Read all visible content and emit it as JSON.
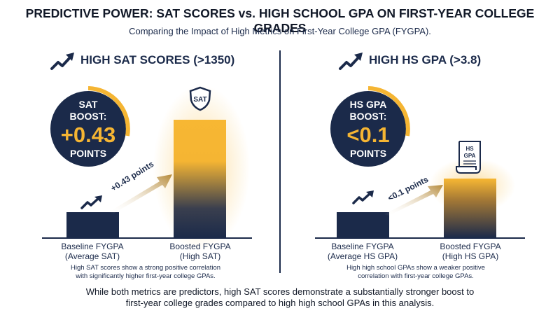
{
  "title": "PREDICTIVE POWER: SAT SCORES vs. HIGH SCHOOL GPA ON FIRST-YEAR COLLEGE GRADES",
  "subtitle": "Comparing the Impact of High Metrics on First-Year College GPA (FYGPA).",
  "panels": [
    {
      "heading": "HIGH SAT SCORES (>1350)",
      "badge_line1": "SAT",
      "badge_line2": "BOOST:",
      "badge_value": "+0.43",
      "badge_unit": "POINTS",
      "arrow_label": "+0.43 points",
      "icon_label": "SAT",
      "baseline_label": [
        "Baseline FYGPA",
        "(Average SAT)"
      ],
      "boosted_label": [
        "Boosted FYGPA",
        "(High SAT)"
      ],
      "note": [
        "High SAT scores show a strong positive correlation",
        "with significantly higher first-year college GPAs."
      ]
    },
    {
      "heading": "HIGH HS GPA (>3.8)",
      "badge_line1": "HS GPA",
      "badge_line2": "BOOST:",
      "badge_value": "<0.1",
      "badge_unit": "POINTS",
      "arrow_label": "<0.1 points",
      "icon_label": [
        "HS",
        "GPA"
      ],
      "baseline_label": [
        "Baseline FYGPA",
        "(Average HS GPA)"
      ],
      "boosted_label": [
        "Boosted FYGPA",
        "(High HS GPA)"
      ],
      "note": [
        "High high school GPAs show a weaker positive",
        "correlation with first-year college GPAs."
      ]
    }
  ],
  "footer": [
    "While both metrics are predictors, high SAT scores demonstrate a substantially stronger boost to",
    "first-year college grades compared to high high school GPAs in this analysis."
  ],
  "colors": {
    "navy": "#1b2a4a",
    "gold": "#f5b533"
  },
  "icons": [
    "trend-up-arrow-icon",
    "shield-icon",
    "document-scroll-icon"
  ],
  "chart_data": [
    {
      "type": "bar",
      "categories": [
        "Baseline FYGPA (Average SAT)",
        "Boosted FYGPA (High SAT)"
      ],
      "boost": 0.43,
      "annotation": "+0.43 points"
    },
    {
      "type": "bar",
      "categories": [
        "Baseline FYGPA (Average HS GPA)",
        "Boosted FYGPA (High HS GPA)"
      ],
      "boost": 0.1,
      "annotation": "<0.1 points"
    }
  ]
}
